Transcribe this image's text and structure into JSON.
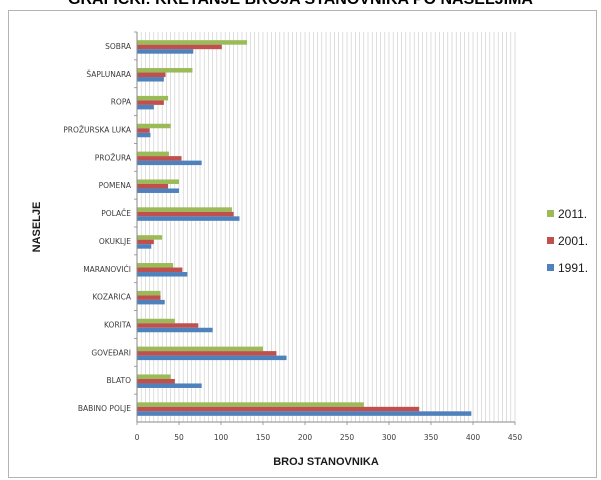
{
  "page": {
    "title": "GRAFIČKI: KRETANJE BROJA STANOVNIKA PO NASELJIMA"
  },
  "chart_data": {
    "type": "bar",
    "orientation": "horizontal",
    "title": "",
    "xlabel": "BROJ STANOVNIKA",
    "ylabel": "NASELJE",
    "xlim": [
      0,
      450
    ],
    "x_ticks": [
      "0",
      "50",
      "100",
      "150",
      "200",
      "250",
      "300",
      "350",
      "400",
      "450"
    ],
    "grid": true,
    "legend_position": "right",
    "categories": [
      "SOBRA",
      "ŠAPLUNARA",
      "ROPA",
      "PROŽURSKA LUKA",
      "PROŽURA",
      "POMENA",
      "POLAČE",
      "OKUKLJE",
      "MARANOVIĆI",
      "KOZARICA",
      "KORITA",
      "GOVEĐARI",
      "BLATO",
      "BABINO POLJE"
    ],
    "series": [
      {
        "name": "2011.",
        "color": "#9bbb59",
        "values": [
          131,
          66,
          37,
          40,
          38,
          50,
          113,
          30,
          43,
          28,
          45,
          150,
          40,
          270
        ]
      },
      {
        "name": "2001.",
        "color": "#c0504d",
        "values": [
          101,
          34,
          32,
          15,
          53,
          37,
          115,
          20,
          54,
          28,
          73,
          166,
          45,
          336
        ]
      },
      {
        "name": "1991.",
        "color": "#4f81bd",
        "values": [
          67,
          32,
          20,
          16,
          77,
          50,
          122,
          17,
          60,
          33,
          90,
          178,
          77,
          398
        ]
      }
    ]
  }
}
